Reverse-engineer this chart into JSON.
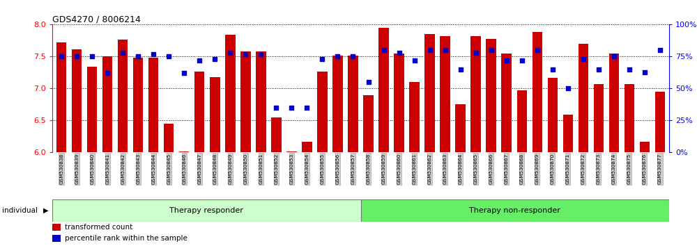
{
  "title": "GDS4270 / 8006214",
  "categories": [
    "GSM530838",
    "GSM530839",
    "GSM530840",
    "GSM530841",
    "GSM530842",
    "GSM530843",
    "GSM530844",
    "GSM530845",
    "GSM530846",
    "GSM530847",
    "GSM530848",
    "GSM530849",
    "GSM530850",
    "GSM530851",
    "GSM530852",
    "GSM530853",
    "GSM530854",
    "GSM530855",
    "GSM530856",
    "GSM530857",
    "GSM530858",
    "GSM530859",
    "GSM530860",
    "GSM530861",
    "GSM530862",
    "GSM530863",
    "GSM530864",
    "GSM530865",
    "GSM530866",
    "GSM530867",
    "GSM530868",
    "GSM530869",
    "GSM530870",
    "GSM530871",
    "GSM530872",
    "GSM530873",
    "GSM530874",
    "GSM530875",
    "GSM530876",
    "GSM530877"
  ],
  "bar_values": [
    7.72,
    7.61,
    7.34,
    7.5,
    7.76,
    7.48,
    7.48,
    6.45,
    6.02,
    7.27,
    7.18,
    7.84,
    7.58,
    7.58,
    6.55,
    6.02,
    6.17,
    7.27,
    7.52,
    7.52,
    6.9,
    7.95,
    7.55,
    7.1,
    7.85,
    7.82,
    6.75,
    7.82,
    7.78,
    7.55,
    6.97,
    7.88,
    7.17,
    6.59,
    7.7,
    7.07,
    7.55,
    7.07,
    6.17,
    6.95
  ],
  "percentile_values": [
    75,
    75,
    75,
    62,
    78,
    75,
    77,
    75,
    62,
    72,
    73,
    78,
    77,
    77,
    35,
    35,
    35,
    73,
    75,
    75,
    55,
    80,
    78,
    72,
    80,
    80,
    65,
    78,
    80,
    72,
    72,
    80,
    65,
    50,
    73,
    65,
    75,
    65,
    63,
    80
  ],
  "bar_color": "#cc0000",
  "dot_color": "#0000cc",
  "ylim_left": [
    6.0,
    8.0
  ],
  "ylim_right": [
    0,
    100
  ],
  "yticks_left": [
    6.0,
    6.5,
    7.0,
    7.5,
    8.0
  ],
  "yticks_right": [
    0,
    25,
    50,
    75,
    100
  ],
  "group1_label": "Therapy responder",
  "group2_label": "Therapy non-responder",
  "group1_count": 20,
  "group2_count": 20,
  "legend_bar_label": "transformed count",
  "legend_dot_label": "percentile rank within the sample",
  "individual_label": "individual",
  "group1_color": "#ccffcc",
  "group2_color": "#66ee66",
  "right_tick_suffix": "%"
}
